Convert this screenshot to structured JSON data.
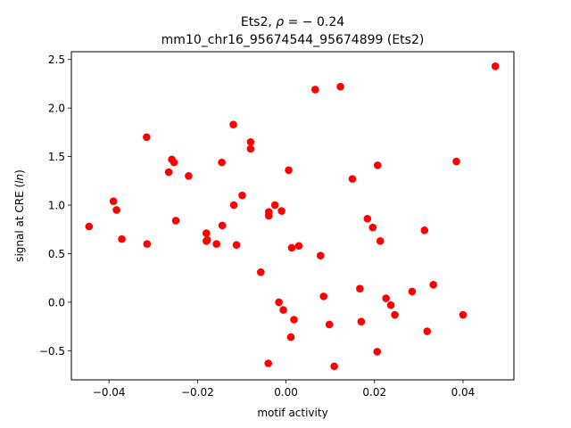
{
  "chart_data": {
    "type": "scatter",
    "title_line1_prefix": "Ets2, ",
    "title_line1_rho": "ρ",
    "title_line1_suffix": " = − 0.24",
    "title_line2": "mm10_chr16_95674544_95674899 (Ets2)",
    "xlabel": "motif activity",
    "ylabel_prefix": "signal at CRE (",
    "ylabel_italic": "ln",
    "ylabel_suffix": ")",
    "xlim": [
      -0.0485,
      0.0515
    ],
    "ylim": [
      -0.8,
      2.58
    ],
    "xticks": [
      -0.04,
      -0.02,
      0.0,
      0.02,
      0.04
    ],
    "xtick_labels": [
      "−0.04",
      "−0.02",
      "0.00",
      "0.02",
      "0.04"
    ],
    "yticks": [
      -0.5,
      0.0,
      0.5,
      1.0,
      1.5,
      2.0,
      2.5
    ],
    "ytick_labels": [
      "−0.5",
      "0.0",
      "0.5",
      "1.0",
      "1.5",
      "2.0",
      "2.5"
    ],
    "grid": false,
    "marker_color": "#ff0000",
    "points": [
      {
        "x": -0.0445,
        "y": 0.78
      },
      {
        "x": -0.039,
        "y": 1.04
      },
      {
        "x": -0.0383,
        "y": 0.95
      },
      {
        "x": -0.0371,
        "y": 0.65
      },
      {
        "x": -0.0315,
        "y": 1.7
      },
      {
        "x": -0.0314,
        "y": 0.6
      },
      {
        "x": -0.0265,
        "y": 1.34
      },
      {
        "x": -0.0258,
        "y": 1.47
      },
      {
        "x": -0.0253,
        "y": 1.44
      },
      {
        "x": -0.0249,
        "y": 0.84
      },
      {
        "x": -0.022,
        "y": 1.3
      },
      {
        "x": -0.018,
        "y": 0.71
      },
      {
        "x": -0.018,
        "y": 0.63
      },
      {
        "x": -0.0178,
        "y": 0.64
      },
      {
        "x": -0.0157,
        "y": 0.6
      },
      {
        "x": -0.0145,
        "y": 1.44
      },
      {
        "x": -0.0144,
        "y": 0.79
      },
      {
        "x": -0.0119,
        "y": 1.83
      },
      {
        "x": -0.0118,
        "y": 1.0
      },
      {
        "x": -0.0112,
        "y": 0.59
      },
      {
        "x": -0.0099,
        "y": 1.1
      },
      {
        "x": -0.008,
        "y": 1.65
      },
      {
        "x": -0.008,
        "y": 1.58
      },
      {
        "x": -0.0057,
        "y": 0.31
      },
      {
        "x": -0.004,
        "y": -0.63
      },
      {
        "x": -0.0039,
        "y": 0.93
      },
      {
        "x": -0.0039,
        "y": 0.89
      },
      {
        "x": -0.0025,
        "y": 1.0
      },
      {
        "x": -0.0016,
        "y": 0.0
      },
      {
        "x": -0.001,
        "y": 0.94
      },
      {
        "x": -0.0006,
        "y": -0.08
      },
      {
        "x": 0.0006,
        "y": 1.36
      },
      {
        "x": 0.0011,
        "y": -0.36
      },
      {
        "x": 0.0013,
        "y": 0.56
      },
      {
        "x": 0.0018,
        "y": -0.18
      },
      {
        "x": 0.0029,
        "y": 0.58
      },
      {
        "x": 0.0066,
        "y": 2.19
      },
      {
        "x": 0.0078,
        "y": 0.48
      },
      {
        "x": 0.0085,
        "y": 0.06
      },
      {
        "x": 0.0098,
        "y": -0.23
      },
      {
        "x": 0.0109,
        "y": -0.66
      },
      {
        "x": 0.0123,
        "y": 2.22
      },
      {
        "x": 0.015,
        "y": 1.27
      },
      {
        "x": 0.0167,
        "y": 0.14
      },
      {
        "x": 0.017,
        "y": -0.2
      },
      {
        "x": 0.0184,
        "y": 0.86
      },
      {
        "x": 0.0196,
        "y": 0.77
      },
      {
        "x": 0.0206,
        "y": -0.51
      },
      {
        "x": 0.0207,
        "y": 1.41
      },
      {
        "x": 0.0213,
        "y": 0.63
      },
      {
        "x": 0.0226,
        "y": 0.04
      },
      {
        "x": 0.0237,
        "y": -0.03
      },
      {
        "x": 0.0246,
        "y": -0.13
      },
      {
        "x": 0.0285,
        "y": 0.11
      },
      {
        "x": 0.0313,
        "y": 0.74
      },
      {
        "x": 0.0319,
        "y": -0.3
      },
      {
        "x": 0.0333,
        "y": 0.18
      },
      {
        "x": 0.0385,
        "y": 1.45
      },
      {
        "x": 0.04,
        "y": -0.13
      },
      {
        "x": 0.0473,
        "y": 2.43
      }
    ]
  }
}
